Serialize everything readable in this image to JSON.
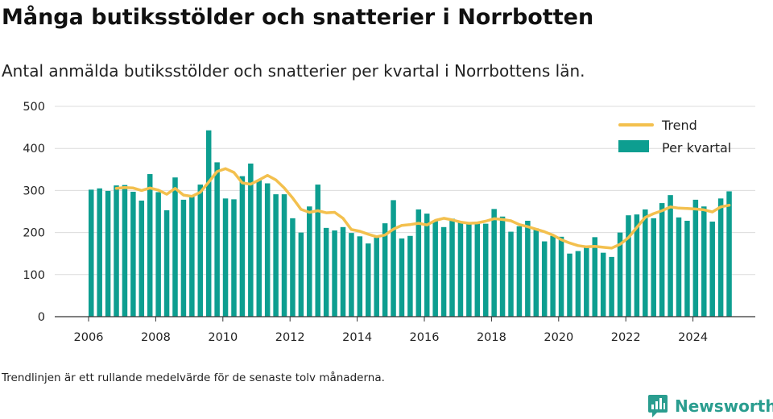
{
  "colors": {
    "bar": "#0d9e90",
    "trend": "#f3c04e",
    "grid": "#dcdcdc",
    "axis": "#333333",
    "brand": "#2a9d8f"
  },
  "header": {
    "title": "Många butiksstölder och snatterier i Norrbotten",
    "subtitle": "Antal anmälda butiksstölder och snatterier per kvartal i Norrbottens län."
  },
  "footer": {
    "note": "Trendlinjen är ett rullande medelvärde för de senaste tolv månaderna.",
    "brand": "Newsworthy",
    "brand_icon": "newsworthy-logo-icon"
  },
  "chart_data": {
    "type": "bar",
    "x_start_year": 2006,
    "periods_per_year": 4,
    "ylim": [
      0,
      500
    ],
    "yticks": [
      0,
      100,
      200,
      300,
      400,
      500
    ],
    "xticks": [
      "2006",
      "2008",
      "2010",
      "2012",
      "2014",
      "2016",
      "2018",
      "2020",
      "2022",
      "2024"
    ],
    "grid": true,
    "legend": {
      "position": "top-right",
      "items": [
        "Trend",
        "Per kvartal"
      ]
    },
    "series": [
      {
        "name": "Per kvartal",
        "type": "bar",
        "values": [
          302,
          305,
          299,
          312,
          313,
          297,
          276,
          339,
          296,
          253,
          331,
          278,
          285,
          314,
          443,
          367,
          281,
          279,
          334,
          364,
          324,
          317,
          291,
          291,
          234,
          200,
          262,
          314,
          211,
          205,
          213,
          199,
          191,
          174,
          188,
          222,
          277,
          186,
          192,
          255,
          245,
          228,
          213,
          233,
          225,
          222,
          222,
          221,
          256,
          238,
          202,
          215,
          228,
          210,
          179,
          192,
          190,
          150,
          156,
          168,
          189,
          152,
          142,
          200,
          241,
          243,
          255,
          234,
          270,
          289,
          236,
          228,
          278,
          262,
          226,
          281,
          298
        ]
      },
      {
        "name": "Trend",
        "type": "line",
        "values": [
          null,
          null,
          null,
          305,
          307,
          306,
          300,
          306,
          301,
          291,
          305,
          289,
          286,
          296,
          320,
          345,
          352,
          343,
          318,
          315,
          325,
          336,
          325,
          306,
          282,
          255,
          248,
          252,
          247,
          248,
          234,
          207,
          203,
          196,
          190,
          194,
          208,
          217,
          219,
          222,
          218,
          229,
          234,
          230,
          225,
          222,
          223,
          227,
          233,
          231,
          228,
          219,
          214,
          208,
          202,
          194,
          183,
          175,
          169,
          166,
          167,
          165,
          163,
          172,
          188,
          212,
          236,
          245,
          252,
          261,
          258,
          257,
          256,
          254,
          249,
          261,
          265
        ]
      }
    ]
  }
}
